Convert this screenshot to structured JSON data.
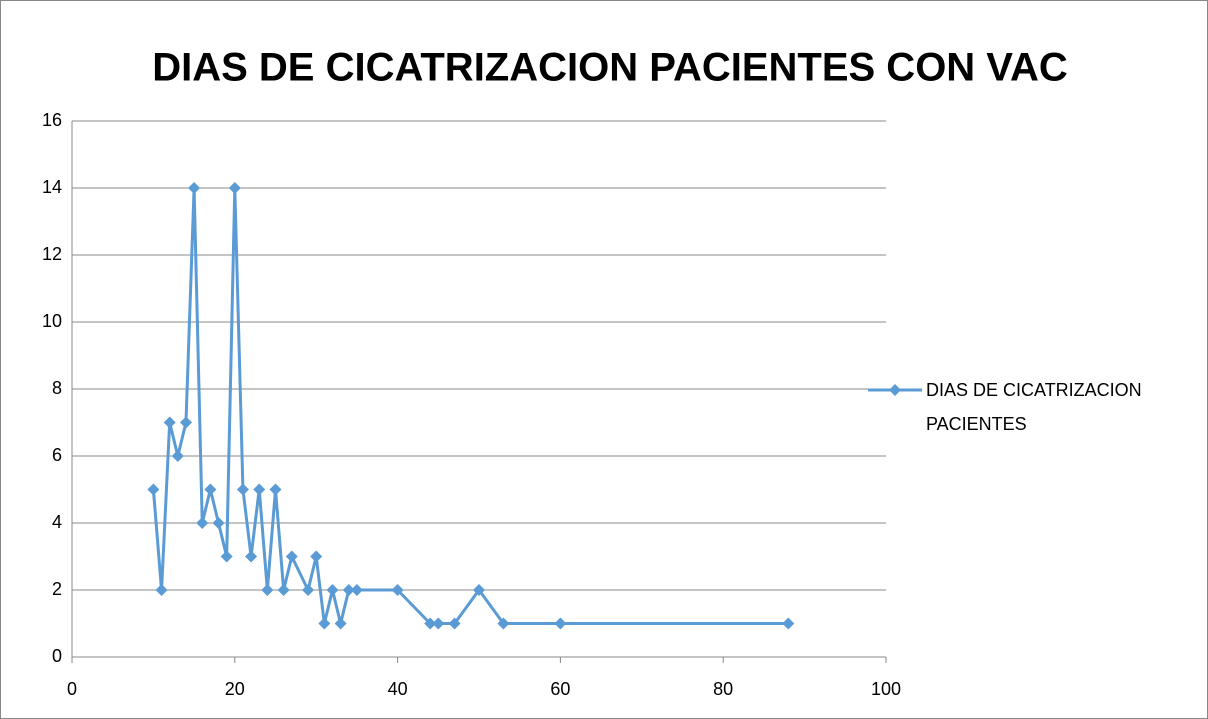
{
  "chart_data": {
    "type": "line",
    "title": "DIAS DE CICATRIZACION PACIENTES CON VAC",
    "x": [
      10,
      11,
      12,
      13,
      14,
      15,
      16,
      17,
      18,
      19,
      20,
      21,
      22,
      23,
      24,
      25,
      26,
      27,
      29,
      30,
      31,
      32,
      33,
      34,
      35,
      40,
      44,
      45,
      47,
      50,
      53,
      60,
      88
    ],
    "series": [
      {
        "name": "DIAS DE CICATRIZACION PACIENTES",
        "color": "#5b9bd5",
        "values": [
          5,
          2,
          7,
          6,
          7,
          14,
          4,
          5,
          4,
          3,
          14,
          5,
          3,
          5,
          2,
          5,
          2,
          3,
          2,
          3,
          1,
          2,
          1,
          2,
          2,
          2,
          1,
          1,
          1,
          2,
          1,
          1,
          1
        ]
      }
    ],
    "xlim": [
      0,
      100
    ],
    "xticks": [
      0,
      20,
      40,
      60,
      80,
      100
    ],
    "ylim": [
      0,
      16
    ],
    "yticks": [
      0,
      2,
      4,
      6,
      8,
      10,
      12,
      14,
      16
    ],
    "grid": true,
    "legend": "right"
  }
}
